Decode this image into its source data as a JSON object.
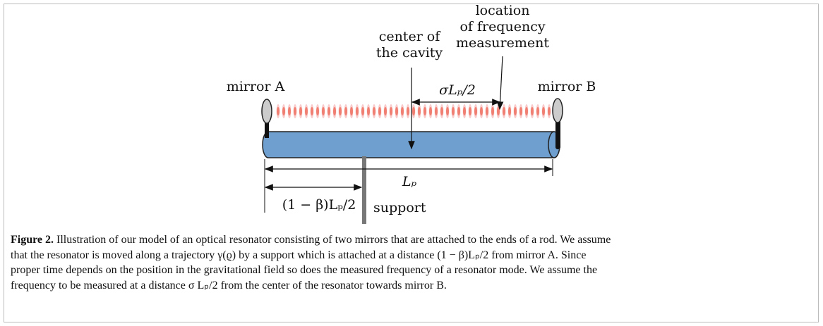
{
  "figure": {
    "labels": {
      "mirror_a": "mirror A",
      "mirror_b": "mirror B",
      "center": [
        "center of",
        "the cavity"
      ],
      "location": [
        "location",
        "of frequency",
        "measurement"
      ],
      "sigma": "σLₚ/2",
      "length": "Lₚ",
      "offset": "(1 − β)Lₚ/2",
      "support": "support"
    },
    "caption": {
      "label": "Figure 2.",
      "lines": [
        " Illustration of our model of an optical resonator consisting of two mirrors that are attached to the ends of a rod. We assume",
        "that the resonator is moved along a trajectory γ(ϱ) by a support which is attached at a distance (1 − β)Lₚ/2 from mirror A. Since",
        "proper time depends on the position in the gravitational field so does the measured frequency of a resonator mode. We assume the",
        "frequency to be measured at a distance σ Lₚ/2 from the center of the resonator towards mirror B."
      ]
    }
  }
}
